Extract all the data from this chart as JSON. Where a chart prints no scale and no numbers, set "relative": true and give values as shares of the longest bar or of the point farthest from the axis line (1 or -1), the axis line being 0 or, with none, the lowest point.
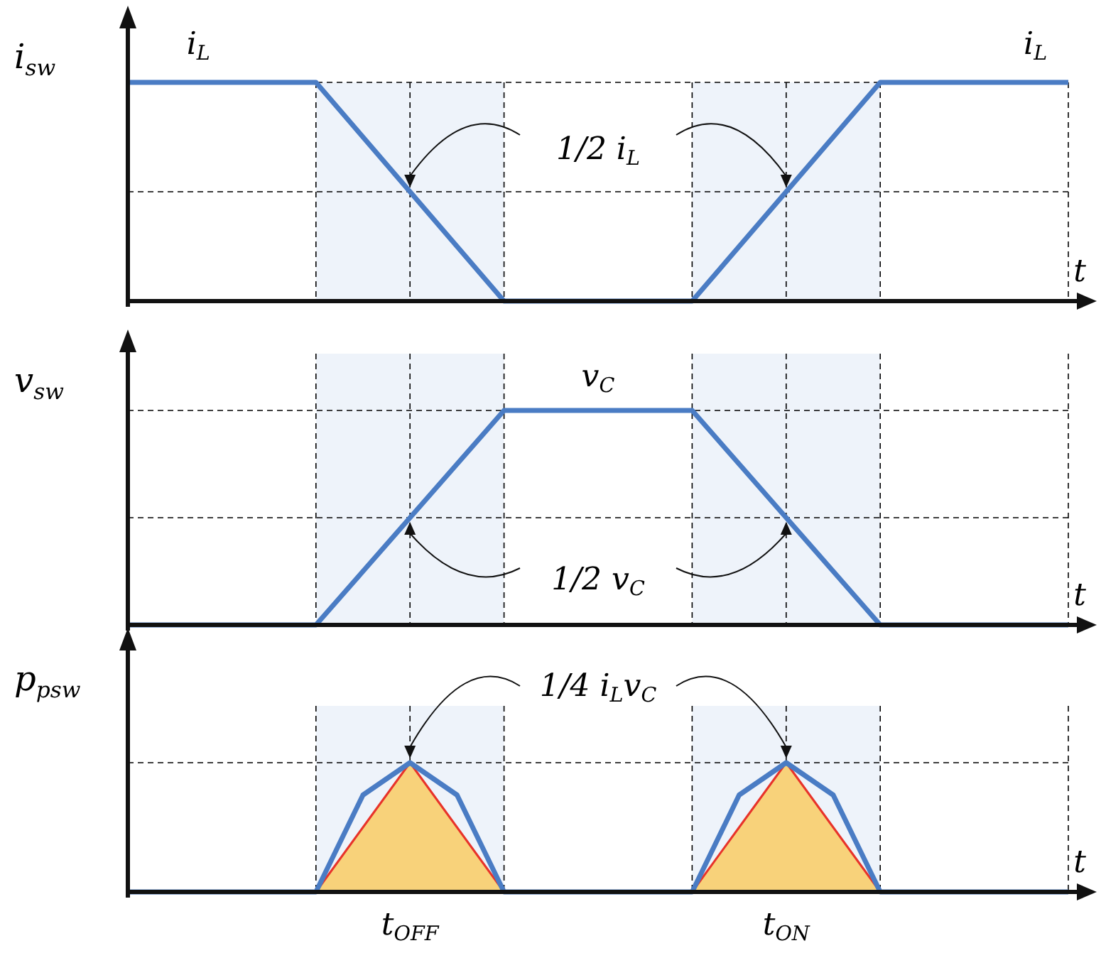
{
  "chart_data": [
    {
      "type": "line",
      "ylabel": "i$_{sw}$",
      "xlabel": "t",
      "relative": true,
      "tick_labels": false,
      "grid": true,
      "categories": [
        null,
        null,
        null,
        null,
        null,
        null,
        null,
        null,
        null,
        null,
        null,
        null,
        null,
        null,
        null,
        null,
        null,
        null,
        null,
        null,
        null
      ],
      "series": [
        {
          "color": "#4a7cc4",
          "values": [
            1,
            1,
            1,
            1,
            1,
            0.75,
            0.5,
            0.25,
            0,
            0,
            0,
            0,
            0,
            0.25,
            0.5,
            0.75,
            1,
            1,
            1,
            1,
            1
          ]
        }
      ],
      "annotations": [
        "i$_{L}$",
        "i$_{L}$",
        "1/2 i$_{L}$"
      ]
    },
    {
      "type": "line",
      "ylabel": "v$_{sw}$",
      "xlabel": "t",
      "relative": true,
      "tick_labels": false,
      "grid": true,
      "categories": [
        null,
        null,
        null,
        null,
        null,
        null,
        null,
        null,
        null,
        null,
        null,
        null,
        null,
        null,
        null,
        null,
        null,
        null,
        null,
        null,
        null
      ],
      "series": [
        {
          "color": "#4a7cc4",
          "values": [
            0,
            0,
            0,
            0,
            0,
            0.25,
            0.5,
            0.75,
            1,
            1,
            1,
            1,
            1,
            0.75,
            0.5,
            0.25,
            0,
            0,
            0,
            0,
            0
          ]
        }
      ],
      "annotations": [
        "v$_{C}$",
        "1/2 v$_{C}$"
      ]
    },
    {
      "type": "line",
      "ylabel": "p$_{p}$$_{sw}$",
      "xlabel": "t",
      "relative": true,
      "tick_labels": "x",
      "grid": true,
      "categories": [
        null,
        null,
        null,
        null,
        null,
        null,
        "t$_{OFF}$",
        null,
        null,
        null,
        null,
        null,
        null,
        null,
        "t$_{ON}$",
        null,
        null,
        null,
        null,
        null,
        null
      ],
      "series": [
        {
          "type": "area",
          "color": "#f8d27a",
          "values": [
            null,
            null,
            null,
            null,
            0,
            0.5,
            1,
            0.5,
            0,
            null,
            null,
            null,
            0,
            0.5,
            1,
            0.5,
            0,
            null,
            null,
            null,
            null
          ]
        },
        {
          "color": "#4a7cc4",
          "values": [
            0,
            0,
            0,
            0,
            0,
            0.75,
            1,
            0.75,
            0,
            0,
            0,
            0,
            0,
            0.75,
            1,
            0.75,
            0,
            0,
            0,
            0,
            0
          ]
        }
      ],
      "annotations": [
        "1/4 i$_{L}$v$_{C}$"
      ]
    }
  ]
}
